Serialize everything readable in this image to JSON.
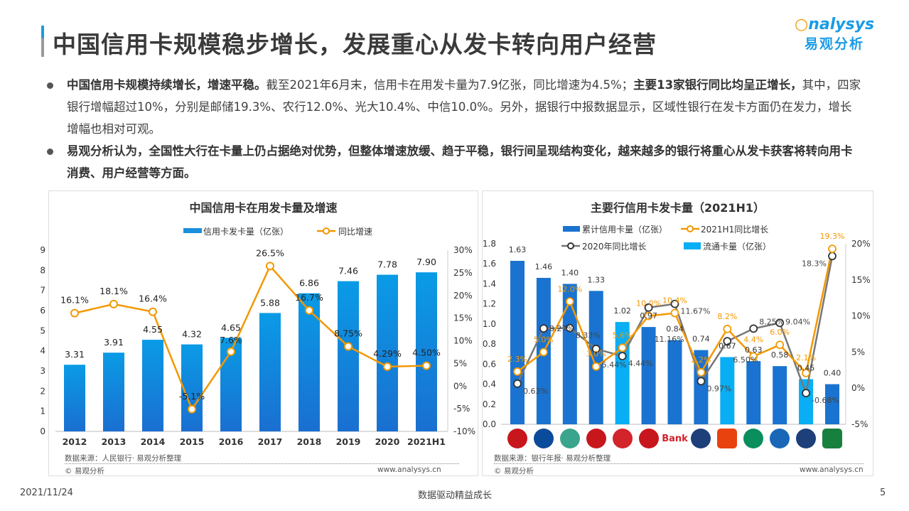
{
  "header": {
    "title": "中国信用卡规模稳步增长，发展重心从发卡转向用户经营",
    "logo_en": "nalysys",
    "logo_cn": "易观分析"
  },
  "bullets": [
    {
      "segments": [
        {
          "text": "中国信用卡规模持续增长，增速平稳。",
          "bold": true
        },
        {
          "text": "截至2021年6月末，信用卡在用发卡量为7.9亿张，同比增速为4.5%；",
          "bold": false
        },
        {
          "text": "主要13家银行同比均呈正增长，",
          "bold": true
        },
        {
          "text": "其中，四家银行增幅超过10%，分别是邮储19.3%、农行12.0%、光大10.4%、中信10.0%。另外，据银行中报数据显示，区域性银行在发卡方面仍在发力，增长增幅也相对可观。",
          "bold": false
        }
      ]
    },
    {
      "segments": [
        {
          "text": "易观分析认为，全国性大行在卡量上仍占据绝对优势，但整体增速放缓、趋于平稳，银行间呈现结构变化，越来越多的银行将重心从发卡获客将转向用卡消费、用户经营等方面。",
          "bold": true
        }
      ]
    }
  ],
  "chart_data": [
    {
      "type": "bar+line",
      "title": "中国信用卡在用发卡量及增速",
      "categories": [
        "2012",
        "2013",
        "2014",
        "2015",
        "2016",
        "2017",
        "2018",
        "2019",
        "2020",
        "2021H1"
      ],
      "series": [
        {
          "name": "信用卡发卡量（亿张）",
          "type": "bar",
          "axis": "left",
          "color": "#1a8fdc",
          "values": [
            3.31,
            3.91,
            4.55,
            4.32,
            4.65,
            5.88,
            6.86,
            7.46,
            7.78,
            7.9
          ],
          "labels": [
            "3.31",
            "3.91",
            "4.55",
            "4.32",
            "4.65",
            "5.88",
            "6.86",
            "7.46",
            "7.78",
            "7.90"
          ]
        },
        {
          "name": "同比增速",
          "type": "line",
          "axis": "right",
          "color": "#f39800",
          "values": [
            16.1,
            18.1,
            16.4,
            -5.1,
            7.6,
            26.5,
            16.7,
            8.75,
            4.29,
            4.5
          ],
          "labels": [
            "16.1%",
            "18.1%",
            "16.4%",
            "-5.1%",
            "7.6%",
            "26.5%",
            "16.7%",
            "8.75%",
            "4.29%",
            "4.50%"
          ]
        }
      ],
      "ylim": [
        0,
        9
      ],
      "yticks": [
        "0",
        "1",
        "2",
        "3",
        "4",
        "5",
        "6",
        "7",
        "8",
        "9"
      ],
      "y2lim": [
        -10,
        30
      ],
      "y2ticks": [
        "-10%",
        "-5%",
        "0%",
        "5%",
        "10%",
        "15%",
        "20%",
        "25%",
        "30%"
      ],
      "legend": "top",
      "source": "数据来源：人民银行· 易观分析整理",
      "copyright": "© 易观分析",
      "url": "www.analysys.cn"
    },
    {
      "type": "bar+line",
      "title": "主要行信用卡发卡量（2021H1）",
      "categories": [
        "icbc-logo",
        "ccb-logo",
        "abc-logo",
        "boc-logo",
        "cmb-logo",
        "citic-logo",
        "bank-logo",
        "ceb-logo",
        "pingan-logo",
        "spdb-logo",
        "hxb-logo",
        "bocom-logo",
        "psbc-logo"
      ],
      "bank_text": "Bank",
      "bar_colors": {
        "累计": "#1a73d0",
        "流通": "#0aaef5"
      },
      "series": [
        {
          "name": "累计信用卡量（亿张）",
          "type": "bar",
          "axis": "left",
          "values": [
            1.63,
            1.46,
            1.4,
            1.33,
            null,
            0.97,
            0.84,
            0.74,
            null,
            0.63,
            0.58,
            null,
            0.4
          ]
        },
        {
          "name": "流通卡量（亿张）",
          "type": "bar",
          "axis": "left",
          "values": [
            null,
            null,
            null,
            null,
            1.02,
            null,
            null,
            null,
            0.67,
            null,
            null,
            0.45,
            null
          ]
        },
        {
          "name": "2021H1同比增长",
          "type": "line",
          "axis": "right",
          "color": "#f39800",
          "values": [
            2.3,
            5.0,
            12.0,
            3.0,
            5.6,
            10.0,
            10.4,
            2.2,
            8.2,
            4.4,
            6.0,
            2.1,
            19.3
          ],
          "labels": [
            "2.3%",
            "5.0%",
            "12.0%",
            "3.0%",
            "5.6%",
            "10.0%",
            "10.4%",
            "2.2%",
            "8.2%",
            "4.4%",
            "6.0%",
            "2.1%",
            "19.3%"
          ]
        },
        {
          "name": "2020年同比增长",
          "type": "line",
          "axis": "right",
          "color": "#777777",
          "values": [
            0.63,
            8.27,
            8.33,
            5.44,
            4.44,
            11.16,
            11.67,
            0.97,
            6.5,
            8.25,
            9.04,
            -0.68,
            18.3
          ],
          "labels": [
            "0.63%",
            "8.27%",
            "8.33%",
            "5.44%",
            "4.44%",
            "11.16%",
            "11.67%",
            "0.97%",
            "6.50%",
            "8.25%",
            "9.04%",
            "-0.68%",
            "18.3%"
          ]
        }
      ],
      "bar_labels": [
        "1.63",
        "1.46",
        "1.40",
        "1.33",
        "1.02",
        "0.97",
        "0.84",
        "0.74",
        "0.67",
        "0.63",
        "0.58",
        "0.45",
        "0.40"
      ],
      "ylim": [
        0,
        1.8
      ],
      "yticks": [
        "0.0",
        "0.2",
        "0.4",
        "0.6",
        "0.8",
        "1.0",
        "1.2",
        "1.4",
        "1.6",
        "1.8"
      ],
      "y2lim": [
        -5,
        20
      ],
      "y2ticks": [
        "-5%",
        "0%",
        "5%",
        "10%",
        "15%",
        "20%"
      ],
      "legend": "top",
      "source": "数据来源：银行年报· 易观分析整理",
      "copyright": "© 易观分析",
      "url": "www.analysys.cn"
    }
  ],
  "footer": {
    "date": "2021/11/24",
    "slogan": "数据驱动精益成长",
    "page": "5"
  }
}
